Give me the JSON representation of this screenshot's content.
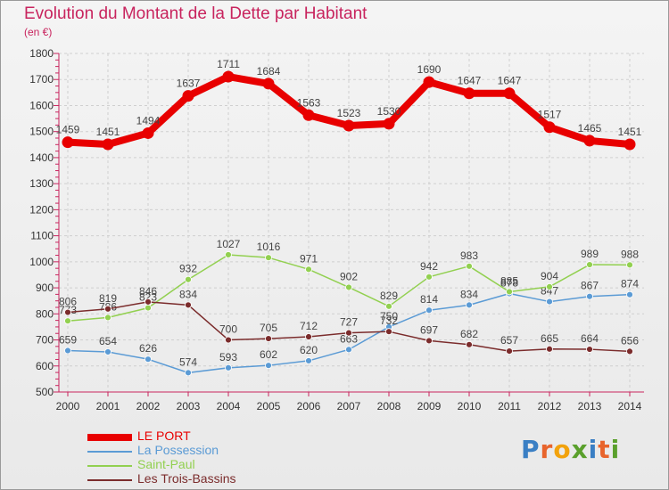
{
  "title": "Evolution du Montant de la Dette par Habitant",
  "unit_label": "(en €)",
  "logo": {
    "text": "Proxiti",
    "letter_colors": [
      "#3a7fc4",
      "#e8642c",
      "#f2a20c",
      "#5aa02c",
      "#3a7fc4",
      "#e8642c",
      "#5aa02c"
    ]
  },
  "chart_data": {
    "type": "line",
    "title": "Evolution du Montant de la Dette par Habitant",
    "ylabel": "(en €)",
    "xlabel": "",
    "ylim": [
      500,
      1800
    ],
    "yticks": [
      500,
      600,
      700,
      800,
      900,
      1000,
      1100,
      1200,
      1300,
      1400,
      1500,
      1600,
      1700,
      1800
    ],
    "grid": true,
    "legend_position": "bottom-left",
    "categories": [
      "2000",
      "2001",
      "2002",
      "2003",
      "2004",
      "2005",
      "2006",
      "2007",
      "2008",
      "2009",
      "2010",
      "2011",
      "2012",
      "2013",
      "2014"
    ],
    "series": [
      {
        "name": "LE PORT",
        "color": "#e80000",
        "values": [
          1459,
          1451,
          1494,
          1637,
          1711,
          1684,
          1563,
          1523,
          1530,
          1690,
          1647,
          1647,
          1517,
          1465,
          1451
        ]
      },
      {
        "name": "La Possession",
        "color": "#5b9bd5",
        "values": [
          659,
          654,
          626,
          574,
          593,
          602,
          620,
          663,
          750,
          814,
          834,
          878,
          847,
          867,
          874
        ]
      },
      {
        "name": "Saint-Paul",
        "color": "#92d050",
        "values": [
          773,
          786,
          823,
          932,
          1027,
          1016,
          971,
          902,
          829,
          942,
          983,
          885,
          904,
          989,
          988
        ]
      },
      {
        "name": "Les Trois-Bassins",
        "color": "#7b2c2c",
        "values": [
          806,
          819,
          846,
          834,
          700,
          705,
          712,
          727,
          732,
          697,
          682,
          657,
          665,
          664,
          656
        ]
      }
    ]
  }
}
